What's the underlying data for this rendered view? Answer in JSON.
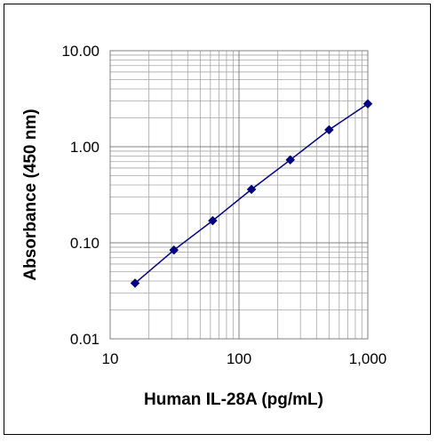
{
  "chart_data": {
    "type": "scatter",
    "title": "",
    "xlabel": "Human IL-28A (pg/mL)",
    "ylabel": "Absorbance (450 nm)",
    "xscale": "log",
    "yscale": "log",
    "xlim": [
      10,
      1000
    ],
    "ylim": [
      0.01,
      10
    ],
    "x_tick_labels": [
      "10",
      "100",
      "1,000"
    ],
    "y_tick_labels": [
      "10.00",
      "1.00",
      "0.10",
      "0.01"
    ],
    "grid": true,
    "legend": "none",
    "series": [
      {
        "x": [
          15.6,
          31.25,
          62.5,
          125,
          250,
          500,
          1000
        ],
        "y": [
          0.038,
          0.084,
          0.17,
          0.36,
          0.73,
          1.5,
          2.8
        ],
        "marker": "diamond",
        "line": "straight",
        "color": "#000080"
      }
    ]
  }
}
